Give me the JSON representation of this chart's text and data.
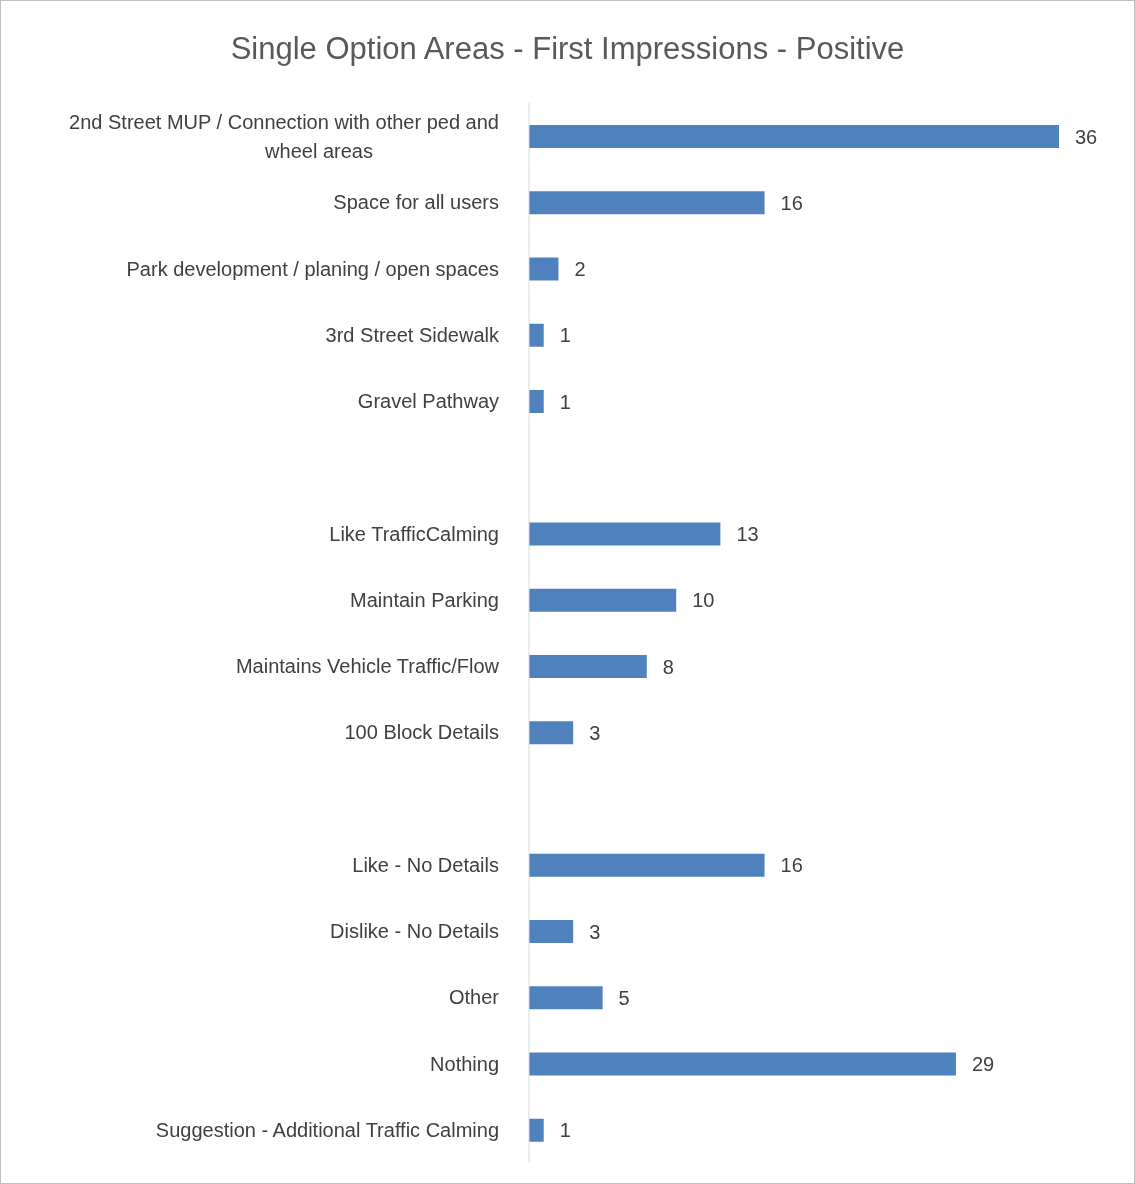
{
  "chart_data": {
    "type": "bar",
    "orientation": "horizontal",
    "title": "Single Option Areas - First Impressions - Positive",
    "categories": [
      "2nd Street MUP / Connection with other ped and wheel areas",
      "Space for all users",
      "Park development / planing / open spaces",
      "3rd Street Sidewalk",
      "Gravel Pathway",
      null,
      "Like TrafficCalming",
      "Maintain Parking",
      "Maintains Vehicle Traffic/Flow",
      "100 Block Details",
      null,
      "Like - No Details",
      "Dislike - No Details",
      "Other",
      "Nothing",
      "Suggestion - Additional Traffic Calming"
    ],
    "values": [
      36,
      16,
      2,
      1,
      1,
      null,
      13,
      10,
      8,
      3,
      null,
      16,
      3,
      5,
      29,
      1
    ],
    "color": "#4f81bd",
    "data_labels": true,
    "grid": false,
    "legend": false,
    "tick_labels": "y"
  }
}
